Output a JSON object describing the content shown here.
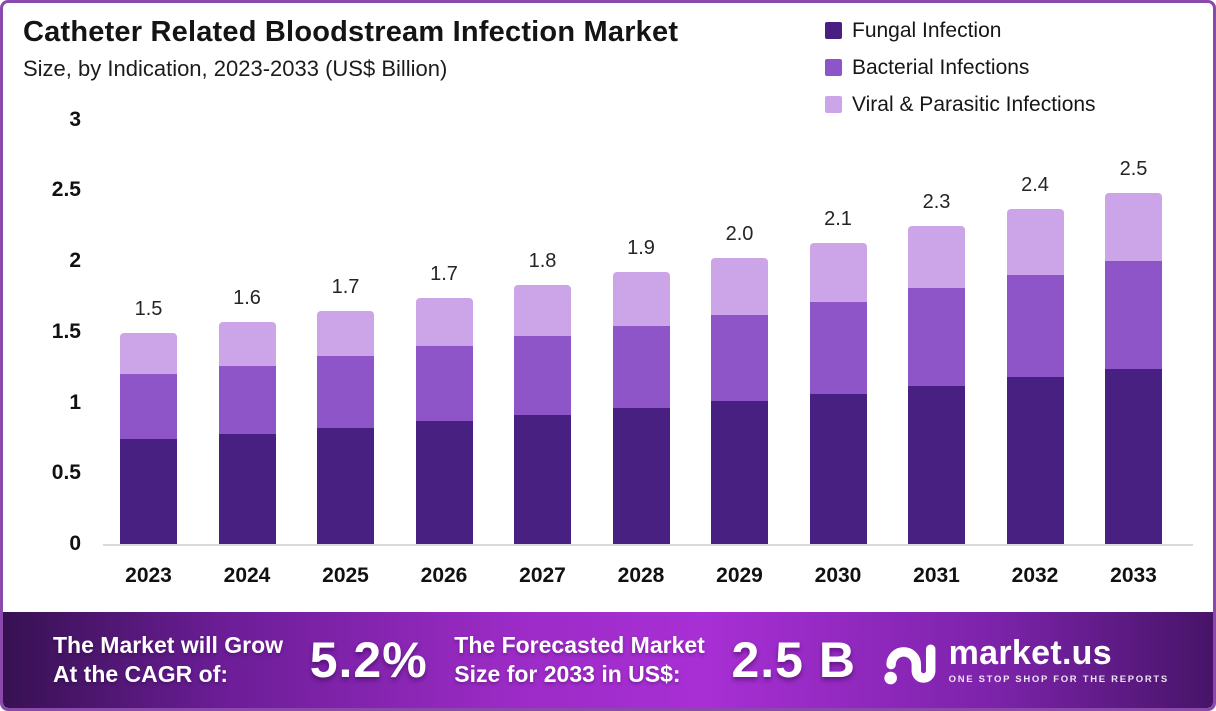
{
  "header": {
    "title": "Catheter Related Bloodstream Infection Market",
    "subtitle": "Size, by Indication, 2023-2033 (US$ Billion)"
  },
  "legend": [
    {
      "label": "Fungal Infection",
      "color": "#482081"
    },
    {
      "label": "Bacterial Infections",
      "color": "#8e55c9"
    },
    {
      "label": "Viral & Parasitic Infections",
      "color": "#cba5e8"
    }
  ],
  "chart_data": {
    "type": "bar",
    "stacked": true,
    "title": "Catheter Related Bloodstream Infection Market Size, by Indication, 2023-2033 (US$ Billion)",
    "categories": [
      "2023",
      "2024",
      "2025",
      "2026",
      "2027",
      "2028",
      "2029",
      "2030",
      "2031",
      "2032",
      "2033"
    ],
    "series": [
      {
        "name": "Fungal Infection",
        "color": "#482081",
        "values": [
          0.74,
          0.78,
          0.82,
          0.87,
          0.91,
          0.96,
          1.01,
          1.06,
          1.12,
          1.18,
          1.24
        ]
      },
      {
        "name": "Bacterial Infections",
        "color": "#8e55c9",
        "values": [
          0.46,
          0.48,
          0.51,
          0.53,
          0.56,
          0.58,
          0.61,
          0.65,
          0.69,
          0.72,
          0.76
        ]
      },
      {
        "name": "Viral & Parasitic Infections",
        "color": "#cba5e8",
        "values": [
          0.29,
          0.31,
          0.32,
          0.34,
          0.36,
          0.38,
          0.4,
          0.42,
          0.44,
          0.47,
          0.48
        ]
      }
    ],
    "total_labels": [
      "1.5",
      "1.6",
      "1.7",
      "1.7",
      "1.8",
      "1.9",
      "2.0",
      "2.1",
      "2.3",
      "2.4",
      "2.5"
    ],
    "y_ticks": [
      "0",
      "0.5",
      "1",
      "1.5",
      "2",
      "2.5",
      "3"
    ],
    "ylim": [
      0,
      3
    ],
    "xlabel": "",
    "ylabel": "",
    "grid": false,
    "legend_position": "top-right"
  },
  "banner": {
    "cagr_label_line1": "The Market will Grow",
    "cagr_label_line2": "At the CAGR of:",
    "cagr_value": "5.2%",
    "forecast_label_line1": "The Forecasted Market",
    "forecast_label_line2": "Size for 2033 in US$:",
    "forecast_value": "2.5 B",
    "brand": "market.us",
    "brand_tagline": "ONE STOP SHOP FOR THE REPORTS"
  }
}
